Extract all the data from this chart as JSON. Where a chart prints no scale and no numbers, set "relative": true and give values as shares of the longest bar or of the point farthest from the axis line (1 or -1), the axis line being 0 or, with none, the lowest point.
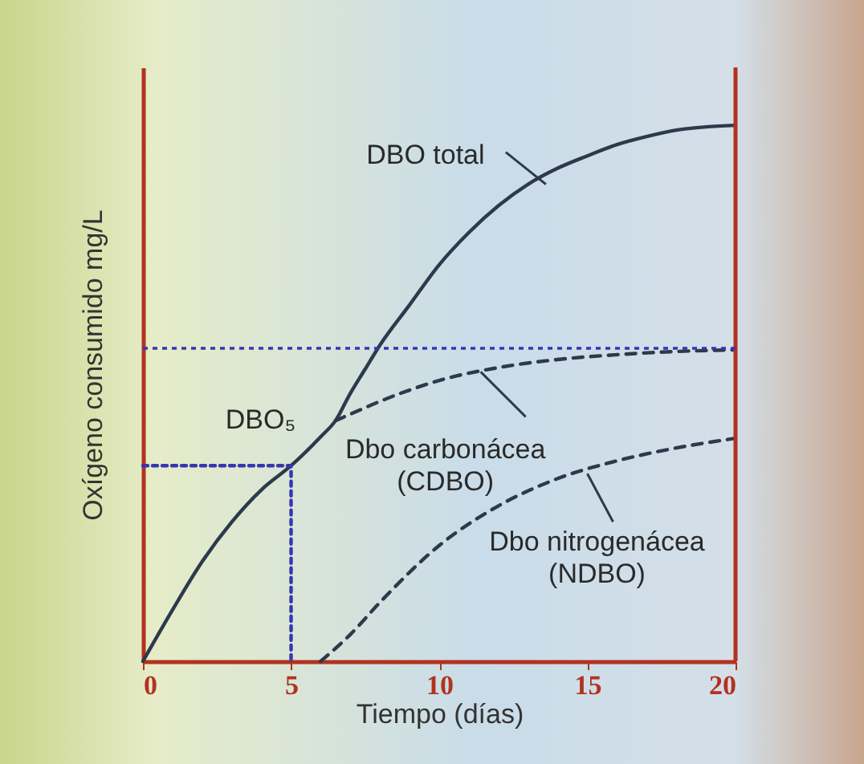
{
  "chart_data": {
    "type": "line",
    "relative": true,
    "xlabel": "Tiempo (días)",
    "ylabel": "Oxígeno consumido mg/L",
    "xlim": [
      0,
      20
    ],
    "xticks": [
      0,
      5,
      10,
      15,
      20
    ],
    "grid": false,
    "tick_labels": "x",
    "series": [
      {
        "color": "#2c3a4c",
        "line_style": "solid",
        "x": [
          0,
          1,
          2,
          3,
          4,
          5,
          6,
          6.5,
          7,
          7.5,
          8,
          9,
          10,
          11,
          12,
          13,
          14,
          15,
          16,
          17,
          18,
          19,
          20
        ],
        "values": [
          0,
          0.096,
          0.186,
          0.26,
          0.32,
          0.365,
          0.419,
          0.449,
          0.5,
          0.545,
          0.59,
          0.665,
          0.74,
          0.8,
          0.85,
          0.89,
          0.92,
          0.943,
          0.964,
          0.979,
          0.991,
          0.997,
          1
        ]
      },
      {
        "color": "#2c3a4c",
        "line_style": "dashed",
        "x": [
          6.5,
          7,
          8,
          9,
          10,
          12,
          14,
          16,
          18,
          20
        ],
        "values": [
          0.449,
          0.461,
          0.485,
          0.506,
          0.524,
          0.548,
          0.563,
          0.572,
          0.578,
          0.581
        ]
      },
      {
        "color": "#2c3a4c",
        "line_style": "dashed",
        "x": [
          6,
          7,
          8,
          10,
          12,
          14,
          16,
          18,
          20
        ],
        "values": [
          0,
          0.05,
          0.11,
          0.216,
          0.29,
          0.341,
          0.374,
          0.398,
          0.416
        ]
      },
      {
        "color": "#3636b0",
        "line_style": "dotted",
        "x": [
          0,
          5,
          5
        ],
        "values": [
          0.365,
          0.365,
          0
        ]
      }
    ],
    "ref_lines": [
      {
        "axis": "y",
        "value": 0.584,
        "color": "#3636b0",
        "line_style": "dotted"
      }
    ],
    "annotations": [
      {
        "text": "DBO total",
        "x": 13.6,
        "y": 0.89
      },
      {
        "text": "DBO₅",
        "x": 5,
        "y": 0.365
      },
      {
        "text": "Dbo carbonácea\n(CDBO)",
        "x": 11.4,
        "y": 0.54
      },
      {
        "text": "Dbo nitrogenácea\n(NDBO)",
        "x": 15,
        "y": 0.35
      }
    ]
  }
}
